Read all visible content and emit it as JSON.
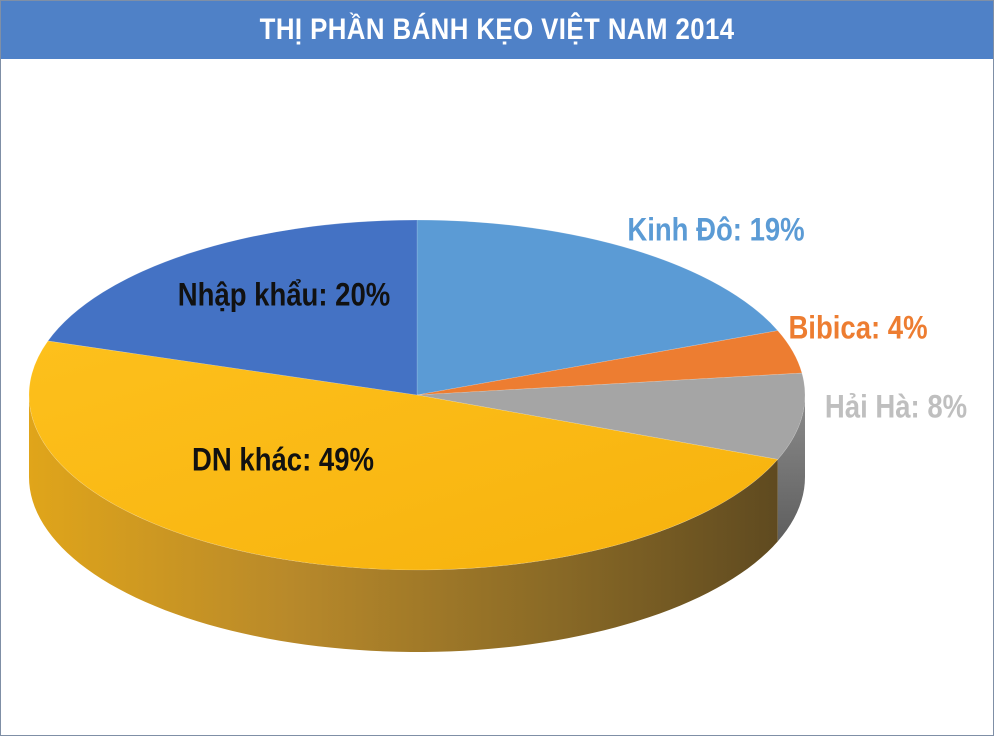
{
  "title": "THỊ PHẦN BÁNH KẸO VIỆT NAM 2014",
  "colors": {
    "header": "#4f81c7",
    "kinh_do": "#5b9bd5",
    "bibica": "#ed7d31",
    "hai_ha": "#a5a5a5",
    "dn_khac": "#fbb812",
    "nhap_khau": "#4472c4"
  },
  "chart_data": {
    "type": "pie",
    "style": "3d",
    "title": "THỊ PHẦN BÁNH KẸO VIỆT NAM 2014",
    "categories": [
      "Kinh Đô",
      "Bibica",
      "Hải Hà",
      "DN khác",
      "Nhập khẩu"
    ],
    "values": [
      19,
      4,
      8,
      49,
      20
    ],
    "labels": [
      "Kinh Đô: 19%",
      "Bibica: 4%",
      "Hải Hà: 8%",
      "DN khác: 49%",
      "Nhập khẩu: 20%"
    ],
    "colors": [
      "#5b9bd5",
      "#ed7d31",
      "#a5a5a5",
      "#fbb812",
      "#4472c4"
    ],
    "label_colors": [
      "#5b9bd5",
      "#ed7d31",
      "#bfbfbf",
      "#111111",
      "#111111"
    ],
    "label_placement": [
      "outside",
      "outside",
      "outside",
      "inside",
      "inside"
    ]
  }
}
